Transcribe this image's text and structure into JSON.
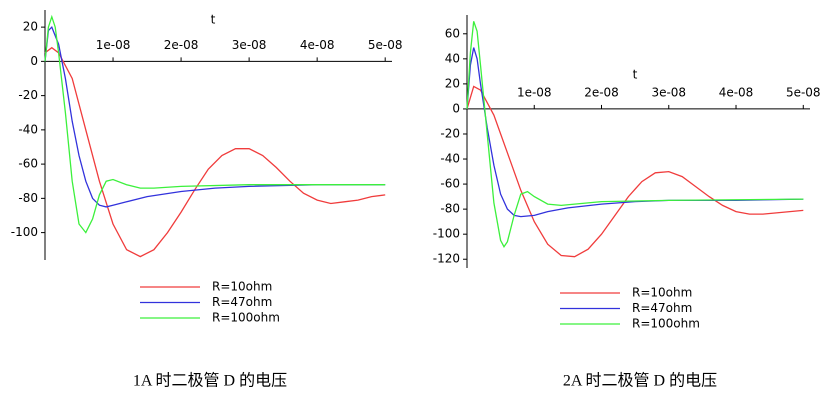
{
  "chart_data": [
    {
      "type": "line",
      "x_label": "t",
      "caption": "1A 时二极管 D 的电压",
      "xlim": [
        0,
        5.1e-08
      ],
      "ylim": [
        -116,
        30
      ],
      "xticks": [
        {
          "value": 1e-08,
          "label": "1e-08"
        },
        {
          "value": 2e-08,
          "label": "2e-08"
        },
        {
          "value": 3e-08,
          "label": "3e-08"
        },
        {
          "value": 4e-08,
          "label": "4e-08"
        },
        {
          "value": 5e-08,
          "label": "5e-08"
        }
      ],
      "yticks": [
        -100,
        -80,
        -60,
        -40,
        -20,
        0,
        20
      ],
      "series": [
        {
          "name": "R=10ohm",
          "color": "#f03c3c",
          "x": [
            0,
            1e-09,
            2e-09,
            4e-09,
            6e-09,
            8e-09,
            1e-08,
            1.2e-08,
            1.4e-08,
            1.6e-08,
            1.8e-08,
            2e-08,
            2.2e-08,
            2.4e-08,
            2.6e-08,
            2.8e-08,
            3e-08,
            3.2e-08,
            3.4e-08,
            3.6e-08,
            3.8e-08,
            4e-08,
            4.2e-08,
            4.4e-08,
            4.6e-08,
            4.8e-08,
            5e-08
          ],
          "values": [
            5,
            8,
            5,
            -10,
            -40,
            -70,
            -95,
            -110,
            -114,
            -110,
            -100,
            -88,
            -75,
            -63,
            -55,
            -51,
            -51,
            -55,
            -62,
            -70,
            -77,
            -81,
            -83,
            -82,
            -81,
            -79,
            -78
          ]
        },
        {
          "name": "R=47ohm",
          "color": "#3232dc",
          "x": [
            0,
            5e-10,
            1e-09,
            2e-09,
            3e-09,
            4e-09,
            5e-09,
            6e-09,
            7e-09,
            8e-09,
            9e-09,
            1e-08,
            1.2e-08,
            1.5e-08,
            2e-08,
            2.5e-08,
            3e-08,
            4e-08,
            5e-08
          ],
          "values": [
            0,
            18,
            20,
            10,
            -10,
            -35,
            -55,
            -70,
            -80,
            -84,
            -85,
            -84,
            -82,
            -79,
            -76,
            -74,
            -73,
            -72,
            -72
          ]
        },
        {
          "name": "R=100ohm",
          "color": "#3cf03c",
          "x": [
            0,
            5e-10,
            1e-09,
            1.5e-09,
            2e-09,
            3e-09,
            4e-09,
            5e-09,
            6e-09,
            7e-09,
            8e-09,
            9e-09,
            1e-08,
            1.2e-08,
            1.4e-08,
            1.6e-08,
            2e-08,
            3e-08,
            5e-08
          ],
          "values": [
            0,
            20,
            26,
            20,
            5,
            -30,
            -70,
            -95,
            -100,
            -92,
            -78,
            -70,
            -69,
            -72,
            -74,
            -74,
            -73,
            -72,
            -72
          ]
        }
      ]
    },
    {
      "type": "line",
      "x_label": "t",
      "caption": "2A 时二极管 D 的电压",
      "xlim": [
        0,
        5.1e-08
      ],
      "ylim": [
        -127,
        75
      ],
      "xticks": [
        {
          "value": 1e-08,
          "label": "1e-08"
        },
        {
          "value": 2e-08,
          "label": "2e-08"
        },
        {
          "value": 3e-08,
          "label": "3e-08"
        },
        {
          "value": 4e-08,
          "label": "4e-08"
        },
        {
          "value": 5e-08,
          "label": "5e-08"
        }
      ],
      "yticks": [
        -120,
        -100,
        -80,
        -60,
        -40,
        -20,
        0,
        20,
        40,
        60
      ],
      "series": [
        {
          "name": "R=10ohm",
          "color": "#f03c3c",
          "x": [
            0,
            1e-09,
            2e-09,
            4e-09,
            6e-09,
            8e-09,
            1e-08,
            1.2e-08,
            1.4e-08,
            1.6e-08,
            1.8e-08,
            2e-08,
            2.2e-08,
            2.4e-08,
            2.6e-08,
            2.8e-08,
            3e-08,
            3.2e-08,
            3.4e-08,
            3.6e-08,
            3.8e-08,
            4e-08,
            4.2e-08,
            4.4e-08,
            4.6e-08,
            4.8e-08,
            5e-08
          ],
          "values": [
            0,
            18,
            15,
            -5,
            -35,
            -65,
            -90,
            -108,
            -117,
            -118,
            -112,
            -100,
            -85,
            -70,
            -58,
            -51,
            -50,
            -54,
            -62,
            -70,
            -77,
            -82,
            -84,
            -84,
            -83,
            -82,
            -81
          ]
        },
        {
          "name": "R=47ohm",
          "color": "#3232dc",
          "x": [
            0,
            5e-10,
            1e-09,
            1.5e-09,
            2e-09,
            3e-09,
            4e-09,
            5e-09,
            6e-09,
            7e-09,
            8e-09,
            1e-08,
            1.2e-08,
            1.5e-08,
            2e-08,
            2.5e-08,
            3e-08,
            4e-08,
            5e-08
          ],
          "values": [
            0,
            35,
            49,
            40,
            20,
            -15,
            -45,
            -68,
            -80,
            -85,
            -86,
            -85,
            -82,
            -79,
            -76,
            -74,
            -73,
            -73,
            -72
          ]
        },
        {
          "name": "R=100ohm",
          "color": "#3cf03c",
          "x": [
            0,
            5e-10,
            1e-09,
            1.5e-09,
            2e-09,
            3e-09,
            4e-09,
            5e-09,
            5.5e-09,
            6e-09,
            7e-09,
            8e-09,
            9e-09,
            1e-08,
            1.2e-08,
            1.4e-08,
            1.6e-08,
            2e-08,
            3e-08,
            5e-08
          ],
          "values": [
            0,
            45,
            70,
            62,
            35,
            -20,
            -75,
            -105,
            -110,
            -106,
            -85,
            -68,
            -66,
            -70,
            -76,
            -77,
            -76,
            -74,
            -73,
            -72
          ]
        }
      ]
    }
  ]
}
